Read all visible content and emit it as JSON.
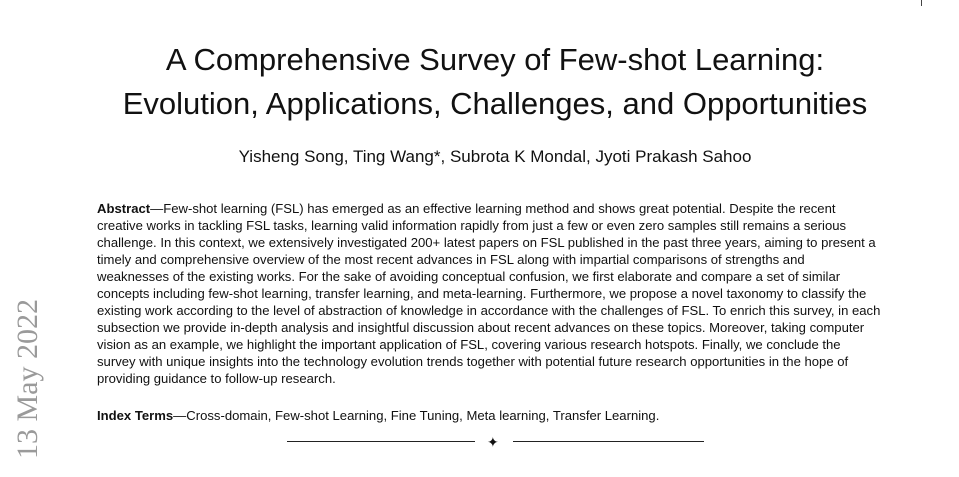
{
  "title_lines": [
    "A Comprehensive Survey of Few-shot Learning:",
    "Evolution, Applications, Challenges, and Opportunities"
  ],
  "authors": "Yisheng Song, Ting Wang*, Subrota K Mondal, Jyoti Prakash Sahoo",
  "abstract": {
    "label": "Abstract",
    "lines": [
      "—Few-shot learning (FSL) has emerged as an effective learning method and shows great potential. Despite the recent",
      "creative works in tackling FSL tasks, learning valid information rapidly from just a few or even zero samples still remains a serious",
      "challenge. In this context, we extensively investigated 200+ latest papers on FSL published in the past three years, aiming to present a",
      "timely and comprehensive overview of the most recent advances in FSL along with impartial comparisons of strengths and",
      "weaknesses of the existing works. For the sake of avoiding conceptual confusion, we first elaborate and compare a set of similar",
      "concepts including few-shot learning, transfer learning, and meta-learning. Furthermore, we propose a novel taxonomy to classify the",
      "existing work according to the level of abstraction of knowledge in accordance with the challenges of FSL. To enrich this survey, in each",
      "subsection we provide in-depth analysis and insightful discussion about recent advances on these topics. Moreover, taking computer",
      "vision as an example, we highlight the important application of FSL, covering various research hotspots. Finally, we conclude the",
      "survey with unique insights into the technology evolution trends together with potential future research opportunities in the hope of",
      "providing guidance to follow-up research."
    ]
  },
  "index_terms": {
    "label": "Index Terms",
    "text": "—Cross-domain, Few-shot Learning, Fine Tuning, Meta learning, Transfer Learning."
  },
  "divider_symbol": "✦",
  "side_stamp": "13 May 2022"
}
